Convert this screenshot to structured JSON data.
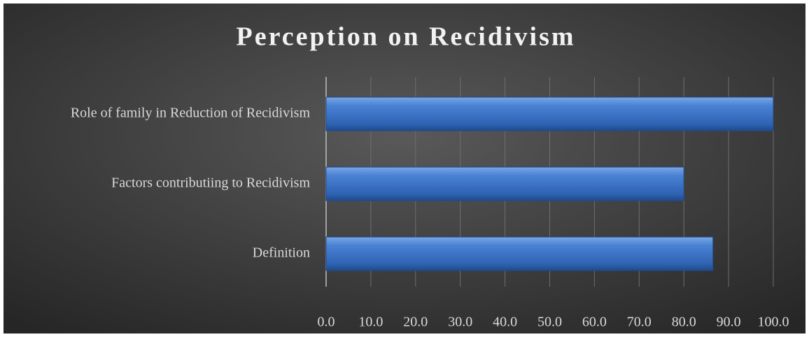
{
  "chart_data": {
    "type": "barh",
    "title": "Perception on Recidivism",
    "categories": [
      "Role of family in Reduction of Recidivism",
      "Factors contributiing to Recidivism",
      "Definition"
    ],
    "values": [
      100,
      80,
      86.5
    ],
    "color": "#3f78c9",
    "xlim": [
      0,
      100
    ],
    "xticks": [
      {
        "value": 0,
        "label": "0.0"
      },
      {
        "value": 10,
        "label": "10.0"
      },
      {
        "value": 20,
        "label": "20.0"
      },
      {
        "value": 30,
        "label": "30.0"
      },
      {
        "value": 40,
        "label": "40.0"
      },
      {
        "value": 50,
        "label": "50.0"
      },
      {
        "value": 60,
        "label": "60.0"
      },
      {
        "value": 70,
        "label": "70.0"
      },
      {
        "value": 80,
        "label": "80.0"
      },
      {
        "value": 90,
        "label": "90.0"
      },
      {
        "value": 100,
        "label": "100.0"
      }
    ],
    "grid": true
  }
}
